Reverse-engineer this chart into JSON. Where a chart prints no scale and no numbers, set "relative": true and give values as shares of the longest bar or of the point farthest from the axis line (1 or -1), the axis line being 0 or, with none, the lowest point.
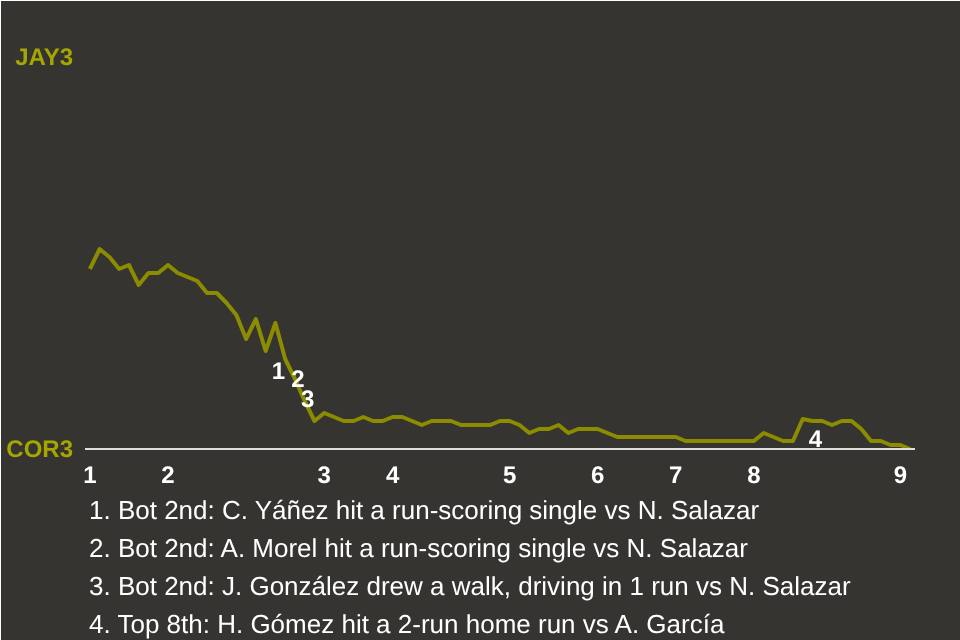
{
  "chart_data": {
    "type": "line",
    "relative": true,
    "categories": [
      "1",
      null,
      null,
      null,
      null,
      null,
      null,
      null,
      "2",
      null,
      null,
      null,
      null,
      null,
      null,
      null,
      null,
      null,
      null,
      null,
      null,
      null,
      null,
      null,
      "3",
      null,
      null,
      null,
      null,
      null,
      null,
      "4",
      null,
      null,
      null,
      null,
      null,
      null,
      null,
      null,
      null,
      null,
      null,
      "5",
      null,
      null,
      null,
      null,
      null,
      null,
      null,
      null,
      "6",
      null,
      null,
      null,
      null,
      null,
      null,
      null,
      "7",
      null,
      null,
      null,
      null,
      null,
      null,
      null,
      "8",
      null,
      null,
      null,
      null,
      null,
      null,
      null,
      null,
      null,
      null,
      null,
      null,
      null,
      null,
      "9",
      null
    ],
    "marker": "none",
    "line_style": "solid",
    "series": [
      {
        "color": "#8c8c00",
        "values": [
          0.9,
          1,
          0.96,
          0.9,
          0.92,
          0.82,
          0.88,
          0.88,
          0.92,
          0.88,
          0.86,
          0.84,
          0.78,
          0.78,
          0.73,
          0.67,
          0.55,
          0.65,
          0.49,
          0.63,
          0.45,
          0.35,
          0.24,
          0.14,
          0.18,
          0.16,
          0.14,
          0.14,
          0.16,
          0.14,
          0.14,
          0.16,
          0.16,
          0.14,
          0.12,
          0.14,
          0.14,
          0.14,
          0.12,
          0.12,
          0.12,
          0.12,
          0.14,
          0.14,
          0.12,
          0.08,
          0.1,
          0.1,
          0.12,
          0.08,
          0.1,
          0.1,
          0.1,
          0.08,
          0.06,
          0.06,
          0.06,
          0.06,
          0.06,
          0.06,
          0.06,
          0.04,
          0.04,
          0.04,
          0.04,
          0.04,
          0.04,
          0.04,
          0.04,
          0.08,
          0.06,
          0.04,
          0.04,
          0.15,
          0.14,
          0.14,
          0.12,
          0.14,
          0.14,
          0.1,
          0.04,
          0.04,
          0.02,
          0.02,
          0
        ]
      }
    ],
    "annotations": [
      "JAY3",
      "COR3",
      {
        "text": "1",
        "y": 0.49
      },
      {
        "text": "2",
        "y": 0.45
      },
      {
        "text": "3",
        "y": 0.35
      },
      {
        "text": "4",
        "y": 0.15
      },
      "1. Bot 2nd: C. Yáñez hit a run-scoring single vs N. Salazar",
      "2. Bot 2nd: A. Morel hit a run-scoring single vs N. Salazar",
      "3. Bot 2nd: J. González drew a walk, driving in 1 run vs N. Salazar",
      "4. Top 8th: H. Gómez hit a 2-run home run vs A. García"
    ]
  }
}
